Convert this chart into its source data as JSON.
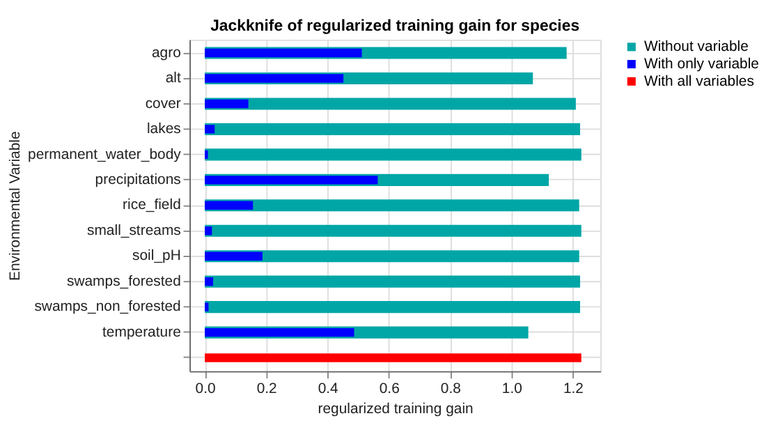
{
  "chart_data": {
    "type": "bar",
    "orientation": "horizontal",
    "title": "Jackknife of regularized training gain for species",
    "xlabel": "regularized training gain",
    "ylabel": "Environmental Variable",
    "categories": [
      "agro",
      "alt",
      "cover",
      "lakes",
      "permanent_water_body",
      "precipitations",
      "rice_field",
      "small_streams",
      "soil_pH",
      "swamps_forested",
      "swamps_non_forested",
      "temperature",
      null
    ],
    "series": [
      {
        "name": "Without variable",
        "color": "#00a6a6",
        "values": [
          1.18,
          1.07,
          1.21,
          1.224,
          1.228,
          1.122,
          1.221,
          1.228,
          1.221,
          1.224,
          1.224,
          1.055,
          null
        ]
      },
      {
        "name": "With only variable",
        "color": "#0000ff",
        "values": [
          0.512,
          0.452,
          0.142,
          0.032,
          0.01,
          0.564,
          0.157,
          0.023,
          0.188,
          0.027,
          0.012,
          0.487,
          null
        ]
      },
      {
        "name": "With all variables",
        "color": "#ff0000",
        "values": [
          null,
          null,
          null,
          null,
          null,
          null,
          null,
          null,
          null,
          null,
          null,
          null,
          1.228
        ]
      }
    ],
    "xlim": [
      -0.05,
      1.29
    ],
    "xticks": [
      {
        "value": 0,
        "label": "0.0"
      },
      0.2,
      0.4,
      0.6,
      0.8,
      {
        "value": 1,
        "label": "1.0"
      },
      1.2
    ],
    "grid": true,
    "legend": "top right"
  }
}
